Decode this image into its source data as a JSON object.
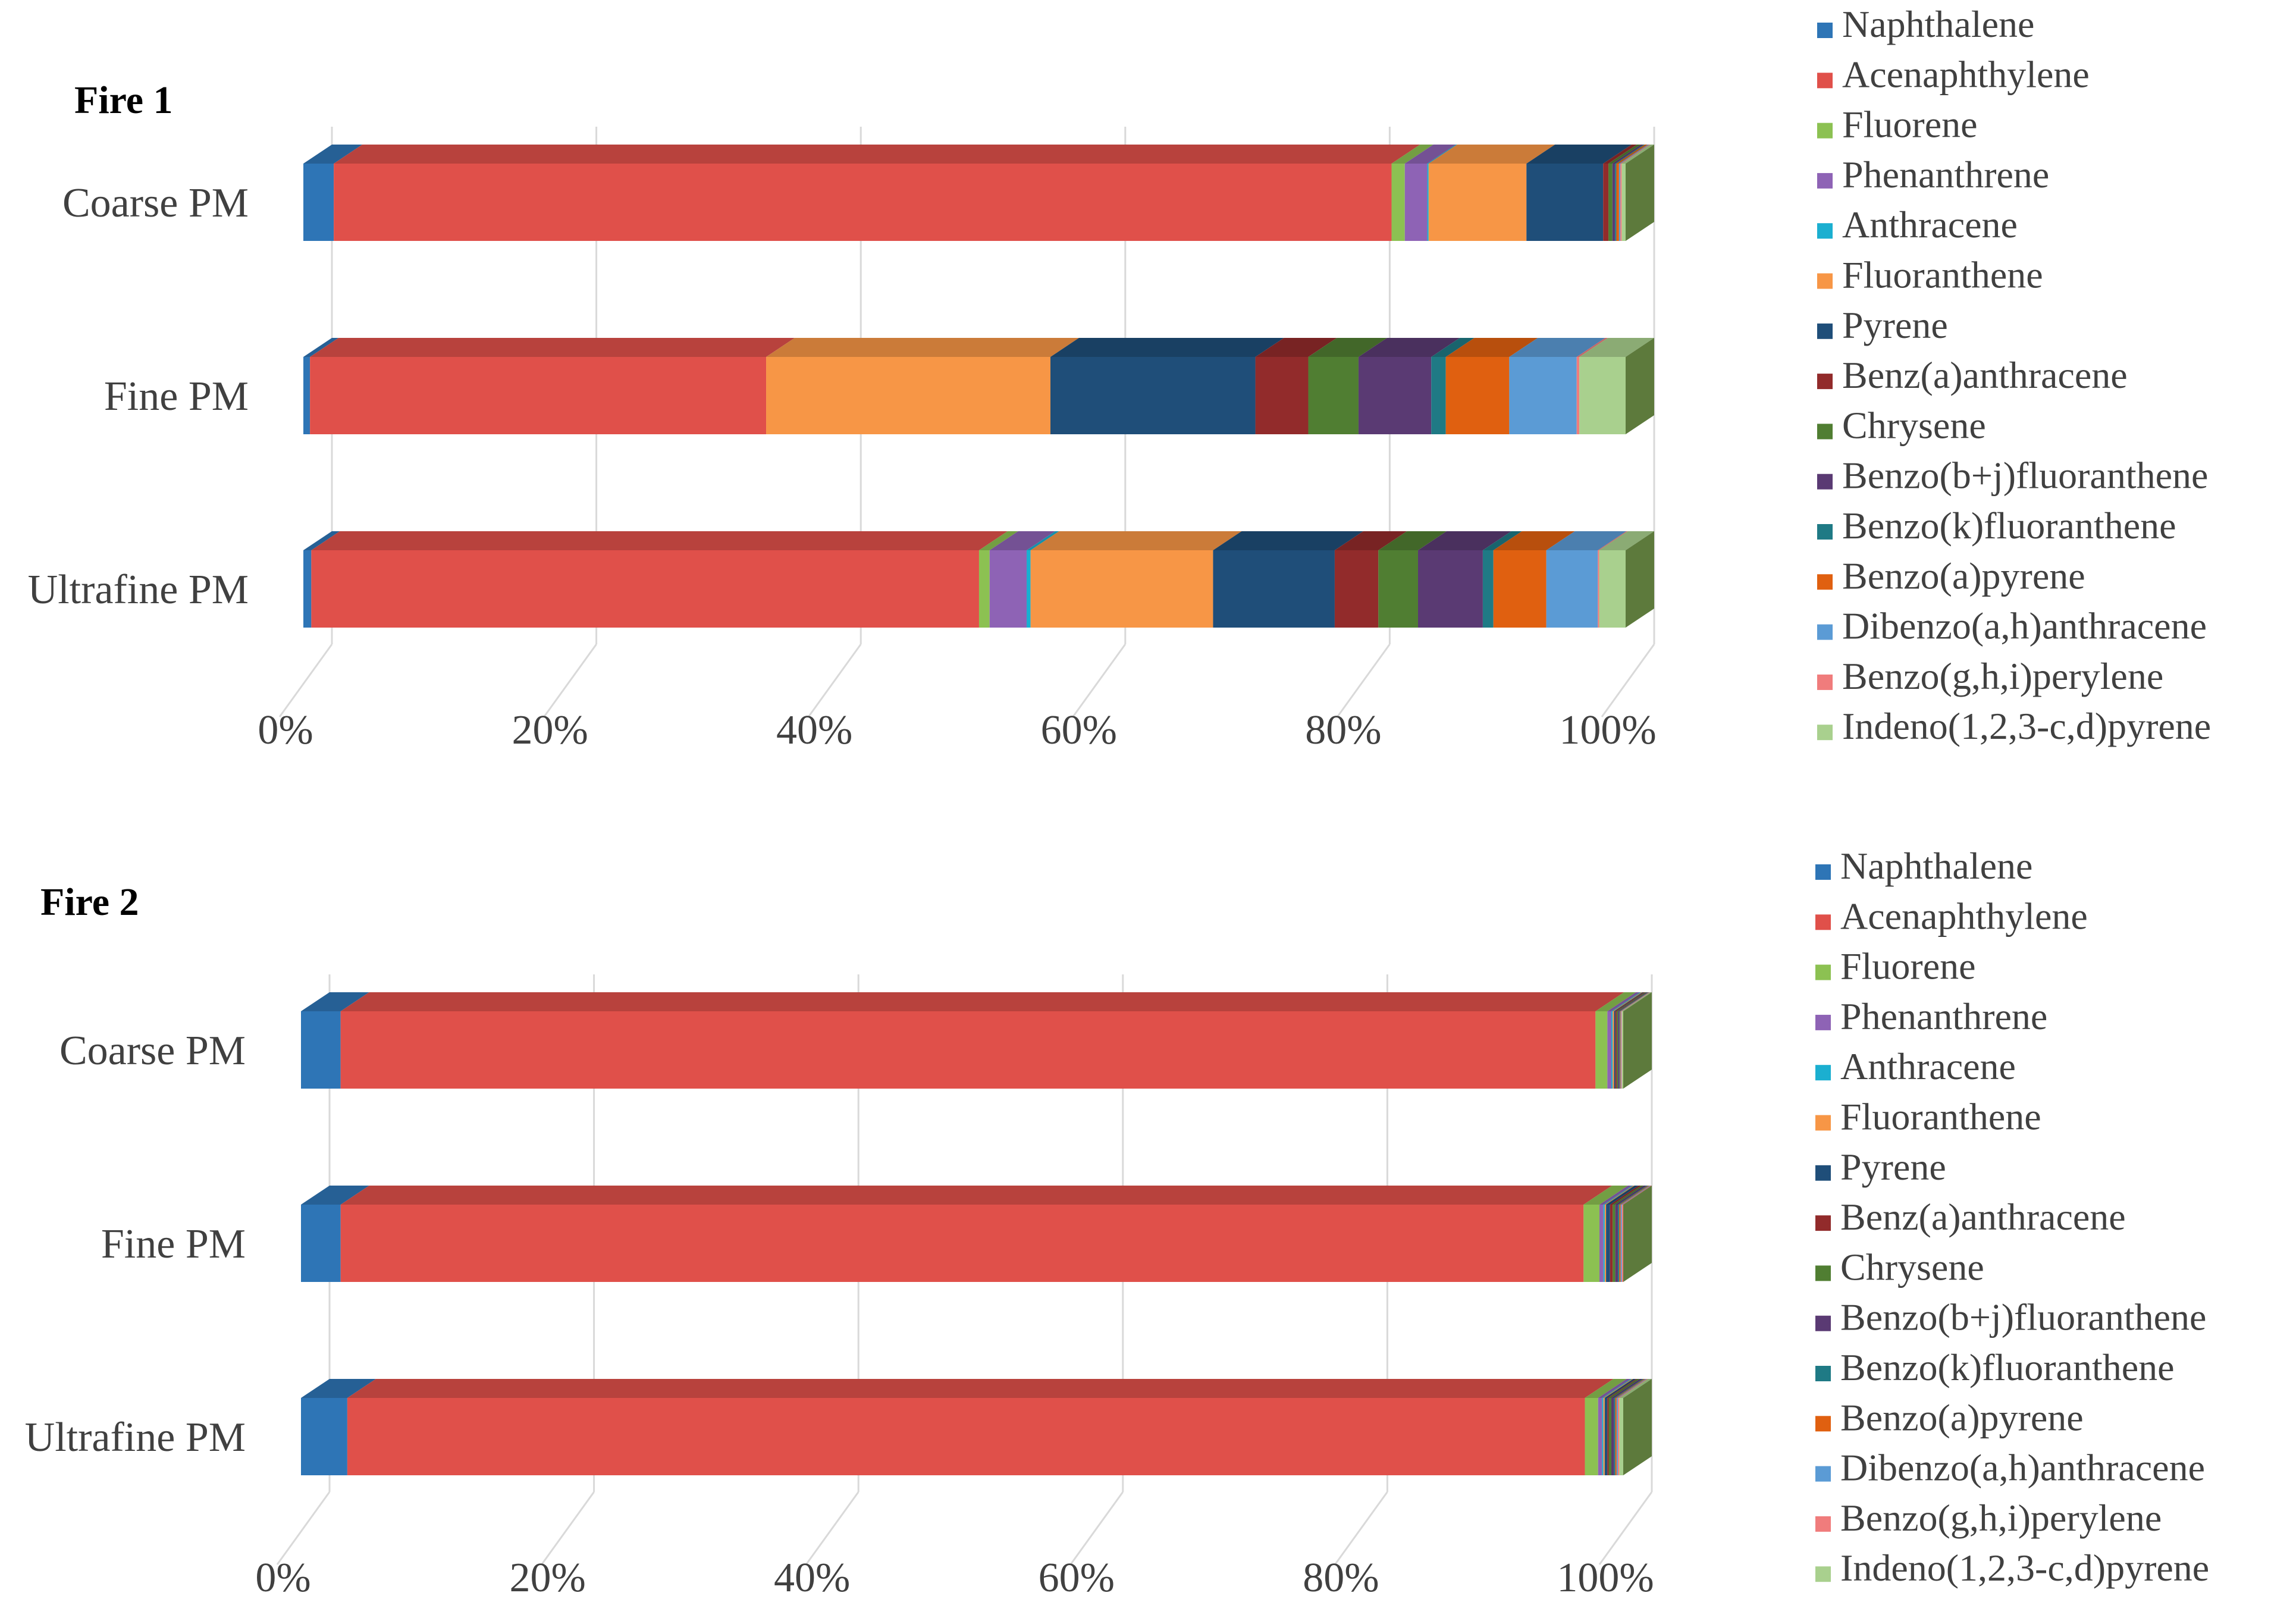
{
  "chart_data": [
    {
      "type": "bar",
      "stacked": "100%",
      "orientation": "horizontal",
      "title": "Fire 1",
      "categories": [
        "Coarse PM",
        "Fine PM",
        "Ultrafine PM"
      ],
      "x_ticks": [
        "0%",
        "20%",
        "40%",
        "60%",
        "80%",
        "100%"
      ],
      "xlim": [
        0,
        100
      ],
      "legend_position": "right",
      "series": [
        {
          "name": "Naphthalene",
          "color": "#2E75B6",
          "values": [
            2.3,
            0.5,
            0.6
          ]
        },
        {
          "name": "Acenaphthylene",
          "color": "#E0504A",
          "values": [
            80.0,
            34.5,
            50.5
          ]
        },
        {
          "name": "Fluorene",
          "color": "#8CC152",
          "values": [
            1.0,
            0.0,
            0.8
          ]
        },
        {
          "name": "Phenanthrene",
          "color": "#8E63B5",
          "values": [
            1.7,
            0.0,
            2.8
          ]
        },
        {
          "name": "Anthracene",
          "color": "#1BAFD0",
          "values": [
            0.1,
            0.0,
            0.3
          ]
        },
        {
          "name": "Fluoranthene",
          "color": "#F79646",
          "values": [
            7.4,
            21.5,
            13.8
          ]
        },
        {
          "name": "Pyrene",
          "color": "#1F4E79",
          "values": [
            5.8,
            15.5,
            9.2
          ]
        },
        {
          "name": "Benz(a)anthracene",
          "color": "#922B2B",
          "values": [
            0.4,
            4.0,
            3.3
          ]
        },
        {
          "name": "Chrysene",
          "color": "#507E32",
          "values": [
            0.3,
            3.8,
            3.0
          ]
        },
        {
          "name": "Benzo(b+j)fluoranthene",
          "color": "#5A3A73",
          "values": [
            0.2,
            5.5,
            4.9
          ]
        },
        {
          "name": "Benzo(k)fluoranthene",
          "color": "#1F7A85",
          "values": [
            0.1,
            1.1,
            0.8
          ]
        },
        {
          "name": "Benzo(a)pyrene",
          "color": "#E06010",
          "values": [
            0.2,
            4.8,
            4.0
          ]
        },
        {
          "name": "Dibenzo(a,h)anthracene",
          "color": "#5B9BD5",
          "values": [
            0.1,
            5.1,
            3.9
          ]
        },
        {
          "name": "Benzo(g,h,i)perylene",
          "color": "#F07C7C",
          "values": [
            0.1,
            0.2,
            0.1
          ]
        },
        {
          "name": "Indeno(1,2,3-c,d)pyrene",
          "color": "#A9D08E",
          "values": [
            0.3,
            3.5,
            2.0
          ]
        }
      ]
    },
    {
      "type": "bar",
      "stacked": "100%",
      "orientation": "horizontal",
      "title": "Fire 2",
      "categories": [
        "Coarse PM",
        "Fine PM",
        "Ultrafine PM"
      ],
      "x_ticks": [
        "0%",
        "20%",
        "40%",
        "60%",
        "80%",
        "100%"
      ],
      "xlim": [
        0,
        100
      ],
      "legend_position": "right",
      "series": [
        {
          "name": "Naphthalene",
          "color": "#2E75B6",
          "values": [
            3.0,
            3.0,
            3.5
          ]
        },
        {
          "name": "Acenaphthylene",
          "color": "#E0504A",
          "values": [
            95.0,
            94.0,
            93.5
          ]
        },
        {
          "name": "Fluorene",
          "color": "#8CC152",
          "values": [
            0.9,
            1.2,
            1.0
          ]
        },
        {
          "name": "Phenanthrene",
          "color": "#8E63B5",
          "values": [
            0.3,
            0.3,
            0.3
          ]
        },
        {
          "name": "Anthracene",
          "color": "#1BAFD0",
          "values": [
            0.1,
            0.1,
            0.1
          ]
        },
        {
          "name": "Fluoranthene",
          "color": "#F79646",
          "values": [
            0.1,
            0.1,
            0.1
          ]
        },
        {
          "name": "Pyrene",
          "color": "#1F4E79",
          "values": [
            0.1,
            0.3,
            0.2
          ]
        },
        {
          "name": "Benz(a)anthracene",
          "color": "#922B2B",
          "values": [
            0.1,
            0.2,
            0.1
          ]
        },
        {
          "name": "Chrysene",
          "color": "#507E32",
          "values": [
            0.1,
            0.2,
            0.2
          ]
        },
        {
          "name": "Benzo(b+j)fluoranthene",
          "color": "#5A3A73",
          "values": [
            0.1,
            0.2,
            0.2
          ]
        },
        {
          "name": "Benzo(k)fluoranthene",
          "color": "#1F7A85",
          "values": [
            0.05,
            0.1,
            0.1
          ]
        },
        {
          "name": "Benzo(a)pyrene",
          "color": "#E06010",
          "values": [
            0.05,
            0.1,
            0.1
          ]
        },
        {
          "name": "Dibenzo(a,h)anthracene",
          "color": "#5B9BD5",
          "values": [
            0.05,
            0.1,
            0.1
          ]
        },
        {
          "name": "Benzo(g,h,i)perylene",
          "color": "#F07C7C",
          "values": [
            0.05,
            0.1,
            0.1
          ]
        },
        {
          "name": "Indeno(1,2,3-c,d)pyrene",
          "color": "#A9D08E",
          "values": [
            0.1,
            0.0,
            0.3
          ]
        }
      ]
    }
  ]
}
